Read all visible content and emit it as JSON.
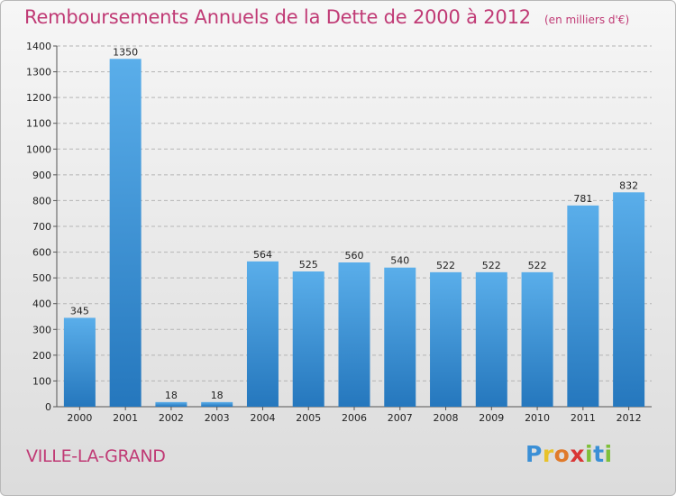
{
  "header": {
    "title": "Remboursements Annuels de la Dette de 2000 à 2012",
    "subtitle": "(en milliers d'€)"
  },
  "footer": {
    "city": "VILLE-LA-GRAND",
    "logo_letters": [
      {
        "ch": "P",
        "color": "#3a8fd6"
      },
      {
        "ch": "r",
        "color": "#e8c22a"
      },
      {
        "ch": "o",
        "color": "#e07a2a"
      },
      {
        "ch": "x",
        "color": "#d93636"
      },
      {
        "ch": "i",
        "color": "#7fbf3a"
      },
      {
        "ch": "t",
        "color": "#3a8fd6"
      },
      {
        "ch": "i",
        "color": "#7fbf3a"
      }
    ]
  },
  "chart_data": {
    "type": "bar",
    "title": "Remboursements Annuels de la Dette de 2000 à 2012",
    "subtitle": "(en milliers d'€)",
    "categories": [
      "2000",
      "2001",
      "2002",
      "2003",
      "2004",
      "2005",
      "2006",
      "2007",
      "2008",
      "2009",
      "2010",
      "2011",
      "2012"
    ],
    "values": [
      345,
      1350,
      18,
      18,
      564,
      525,
      560,
      540,
      522,
      522,
      522,
      781,
      832
    ],
    "ylim": [
      0,
      1400
    ],
    "yticks": [
      0,
      100,
      200,
      300,
      400,
      500,
      600,
      700,
      800,
      900,
      1000,
      1100,
      1200,
      1300,
      1400
    ],
    "grid": "horizontal dashed",
    "colors": {
      "bar_top": "#5aaeea",
      "bar_bottom": "#2577bd",
      "grid": "#b5b5b5",
      "axis": "#555555"
    }
  }
}
